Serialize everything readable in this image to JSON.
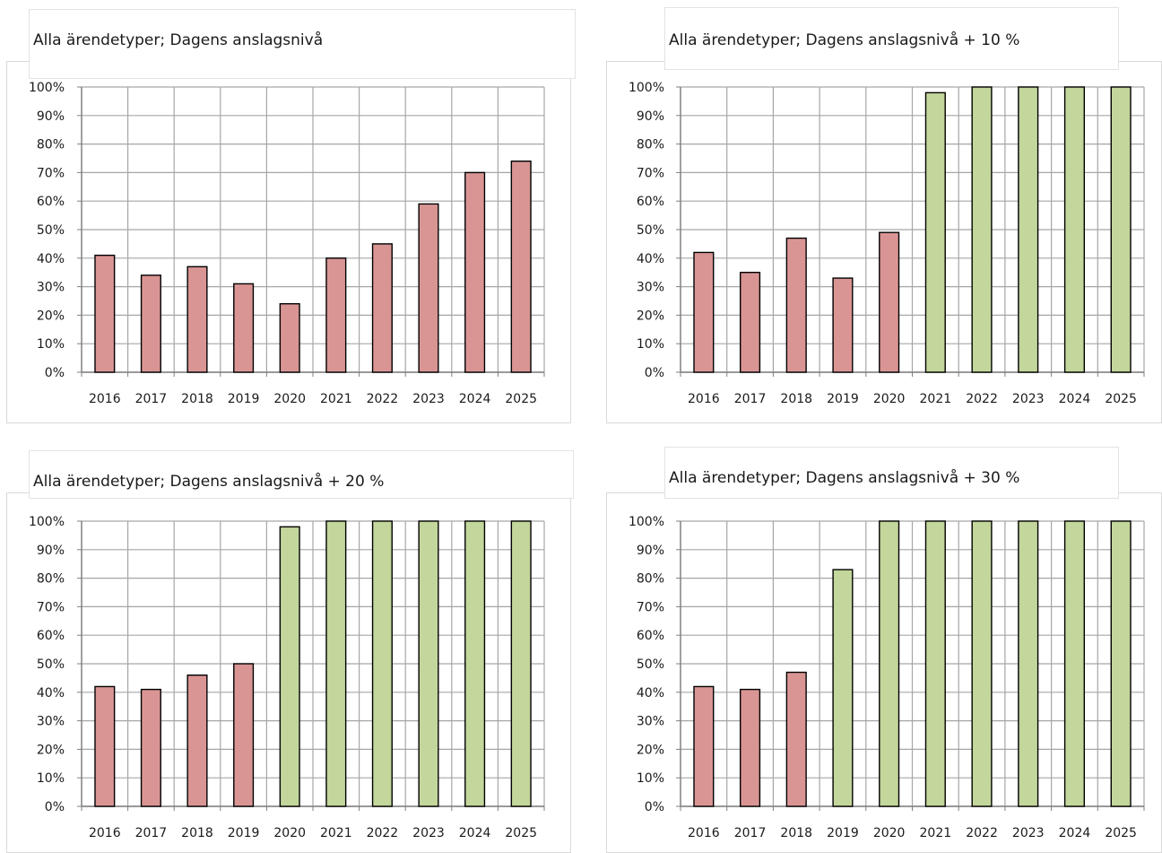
{
  "colors": {
    "red_bar": "#d99594",
    "green_bar": "#c3d69b",
    "grid": "#a6a6a6",
    "axis": "#7f7f7f"
  },
  "chart_data": [
    {
      "type": "bar",
      "title": "Alla ärendetyper; Dagens anslagsnivå",
      "categories": [
        "2016",
        "2017",
        "2018",
        "2019",
        "2020",
        "2021",
        "2022",
        "2023",
        "2024",
        "2025"
      ],
      "values": [
        41,
        34,
        37,
        31,
        24,
        40,
        45,
        59,
        70,
        74
      ],
      "bar_colors": [
        "red",
        "red",
        "red",
        "red",
        "red",
        "red",
        "red",
        "red",
        "red",
        "red"
      ],
      "ylim": [
        0,
        100
      ],
      "yticks": [
        "0%",
        "10%",
        "20%",
        "30%",
        "40%",
        "50%",
        "60%",
        "70%",
        "80%",
        "90%",
        "100%"
      ],
      "grid": true
    },
    {
      "type": "bar",
      "title": "Alla ärendetyper; Dagens anslagsnivå + 10 %",
      "categories": [
        "2016",
        "2017",
        "2018",
        "2019",
        "2020",
        "2021",
        "2022",
        "2023",
        "2024",
        "2025"
      ],
      "values": [
        42,
        35,
        47,
        33,
        49,
        98,
        100,
        100,
        100,
        100
      ],
      "bar_colors": [
        "red",
        "red",
        "red",
        "red",
        "red",
        "green",
        "green",
        "green",
        "green",
        "green"
      ],
      "ylim": [
        0,
        100
      ],
      "yticks": [
        "0%",
        "10%",
        "20%",
        "30%",
        "40%",
        "50%",
        "60%",
        "70%",
        "80%",
        "90%",
        "100%"
      ],
      "grid": true
    },
    {
      "type": "bar",
      "title": "Alla ärendetyper; Dagens anslagsnivå + 20 %",
      "categories": [
        "2016",
        "2017",
        "2018",
        "2019",
        "2020",
        "2021",
        "2022",
        "2023",
        "2024",
        "2025"
      ],
      "values": [
        42,
        41,
        46,
        50,
        98,
        100,
        100,
        100,
        100,
        100
      ],
      "bar_colors": [
        "red",
        "red",
        "red",
        "red",
        "green",
        "green",
        "green",
        "green",
        "green",
        "green"
      ],
      "ylim": [
        0,
        100
      ],
      "yticks": [
        "0%",
        "10%",
        "20%",
        "30%",
        "40%",
        "50%",
        "60%",
        "70%",
        "80%",
        "90%",
        "100%"
      ],
      "grid": true
    },
    {
      "type": "bar",
      "title": "Alla ärendetyper; Dagens anslagsnivå + 30 %",
      "categories": [
        "2016",
        "2017",
        "2018",
        "2019",
        "2020",
        "2021",
        "2022",
        "2023",
        "2024",
        "2025"
      ],
      "values": [
        42,
        41,
        47,
        83,
        100,
        100,
        100,
        100,
        100,
        100
      ],
      "bar_colors": [
        "red",
        "red",
        "red",
        "green",
        "green",
        "green",
        "green",
        "green",
        "green",
        "green"
      ],
      "ylim": [
        0,
        100
      ],
      "yticks": [
        "0%",
        "10%",
        "20%",
        "30%",
        "40%",
        "50%",
        "60%",
        "70%",
        "80%",
        "90%",
        "100%"
      ],
      "grid": true
    }
  ]
}
